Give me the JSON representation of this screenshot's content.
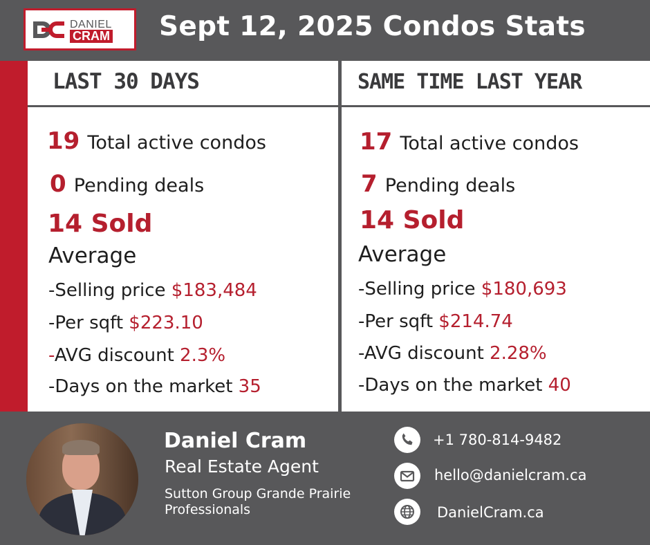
{
  "logo": {
    "line1": "DANIEL",
    "line2": "CRAM"
  },
  "title": "Sept 12, 2025 Condos Stats",
  "colors": {
    "accent": "#c01c2c",
    "gray": "#58585a"
  },
  "left": {
    "heading": "LAST 30 DAYS",
    "active_num": "19",
    "active_label": "Total active condos",
    "pending_num": "0",
    "pending_label": "Pending deals",
    "sold": "14 Sold",
    "average": "Average",
    "price_label": "-Selling price ",
    "price_value": "$183,484",
    "sqft_label": "-Per sqft ",
    "sqft_value": "$223.10",
    "discount_dash": "-",
    "discount_label": "AVG discount ",
    "discount_value": "2.3%",
    "days_label": "-Days on the market ",
    "days_value": "35"
  },
  "right": {
    "heading": "SAME TIME LAST YEAR",
    "active_num": "17",
    "active_label": "Total active condos",
    "pending_num": "7",
    "pending_label": "Pending deals",
    "sold": "14 Sold",
    "average": "Average",
    "price_label": "-Selling price ",
    "price_value": "$180,693",
    "sqft_label": "-Per sqft ",
    "sqft_value": "$214.74",
    "discount_label": "-AVG discount ",
    "discount_value": "2.28%",
    "days_label": "-Days on the market ",
    "days_value": "40"
  },
  "agent": {
    "name": "Daniel Cram",
    "role": "Real Estate Agent",
    "company": "Sutton Group Grande Prairie Professionals"
  },
  "contact": {
    "phone": "+1 780-814-9482",
    "email": "hello@danielcram.ca",
    "website": "DanielCram.ca",
    "phone_icon": "phone-icon",
    "email_icon": "envelope-icon",
    "web_icon": "globe-icon"
  }
}
